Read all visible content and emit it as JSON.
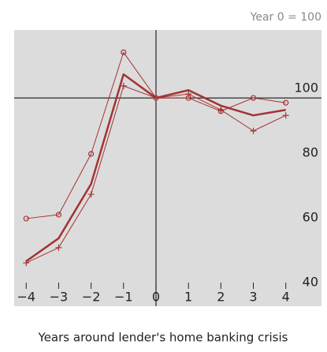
{
  "chart_data": {
    "type": "line",
    "subtitle": "Year 0 = 100",
    "x_label": "Years around lender's home banking crisis",
    "x": [
      -4,
      -3,
      -2,
      -1,
      0,
      1,
      2,
      3,
      4
    ],
    "series": [
      {
        "color": "#a33333",
        "marker": "circle",
        "width": 1,
        "values": [
          62.7,
          63.9,
          82.7,
          114.1,
          100,
          100,
          95.9,
          100,
          98.5
        ]
      },
      {
        "color": "#a33333",
        "marker": "none",
        "width": 2.5,
        "values": [
          49.5,
          56.6,
          73.4,
          107.3,
          100,
          102.4,
          97.6,
          94.6,
          96.3
        ]
      },
      {
        "color": "#a33333",
        "marker": "plus",
        "width": 1,
        "values": [
          49,
          53.7,
          70.2,
          103.7,
          100,
          101.2,
          96.3,
          89.8,
          94.6
        ]
      }
    ],
    "xlim": [
      -4.37,
      5.1
    ],
    "ylim": [
      35.6,
      121
    ],
    "xticks": [
      {
        "value": -4,
        "label": "−4"
      },
      {
        "value": -3,
        "label": "−3"
      },
      {
        "value": -2,
        "label": "−2"
      },
      {
        "value": -1,
        "label": "−1"
      },
      0,
      1,
      2,
      3,
      4
    ],
    "yticks": [
      40,
      60,
      80,
      100
    ],
    "hline": 100,
    "vline": 0,
    "background": "#dcdcdc",
    "grid": false
  }
}
